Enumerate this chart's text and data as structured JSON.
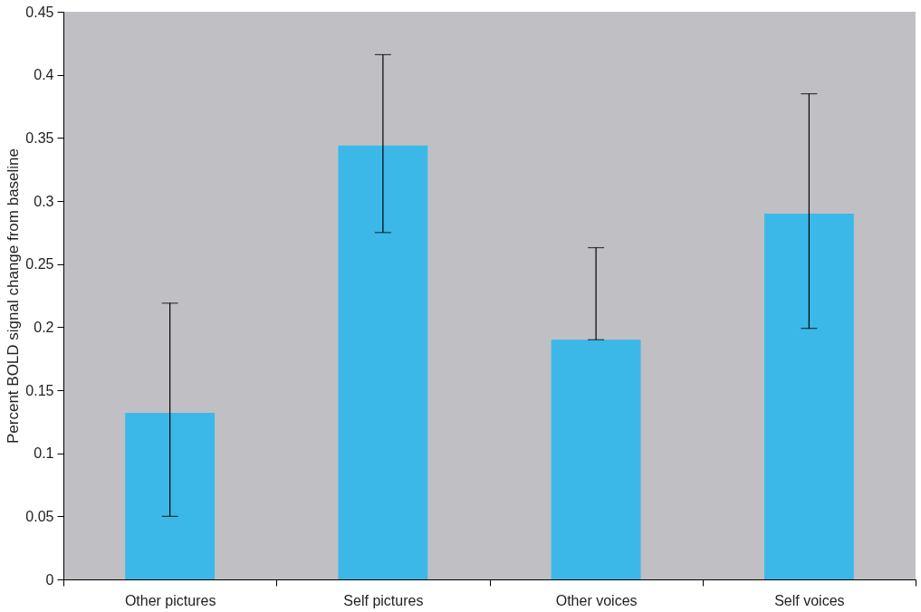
{
  "chart_data": {
    "type": "bar",
    "ylabel": "Percent BOLD signal change from baseline",
    "categories": [
      "Other pictures",
      "Self pictures",
      "Other voices",
      "Self voices"
    ],
    "values": [
      0.132,
      0.344,
      0.19,
      0.29
    ],
    "errors": [
      [
        0.05,
        0.219
      ],
      [
        0.275,
        0.416
      ],
      [
        0.19,
        0.263
      ],
      [
        0.199,
        0.385
      ]
    ],
    "color": "#3bb8e8",
    "ylim": [
      0,
      0.45
    ],
    "yticks": [
      0,
      0.05,
      0.1,
      0.15,
      0.2,
      0.25,
      0.3,
      0.35,
      0.4,
      0.45
    ],
    "grid": false
  }
}
